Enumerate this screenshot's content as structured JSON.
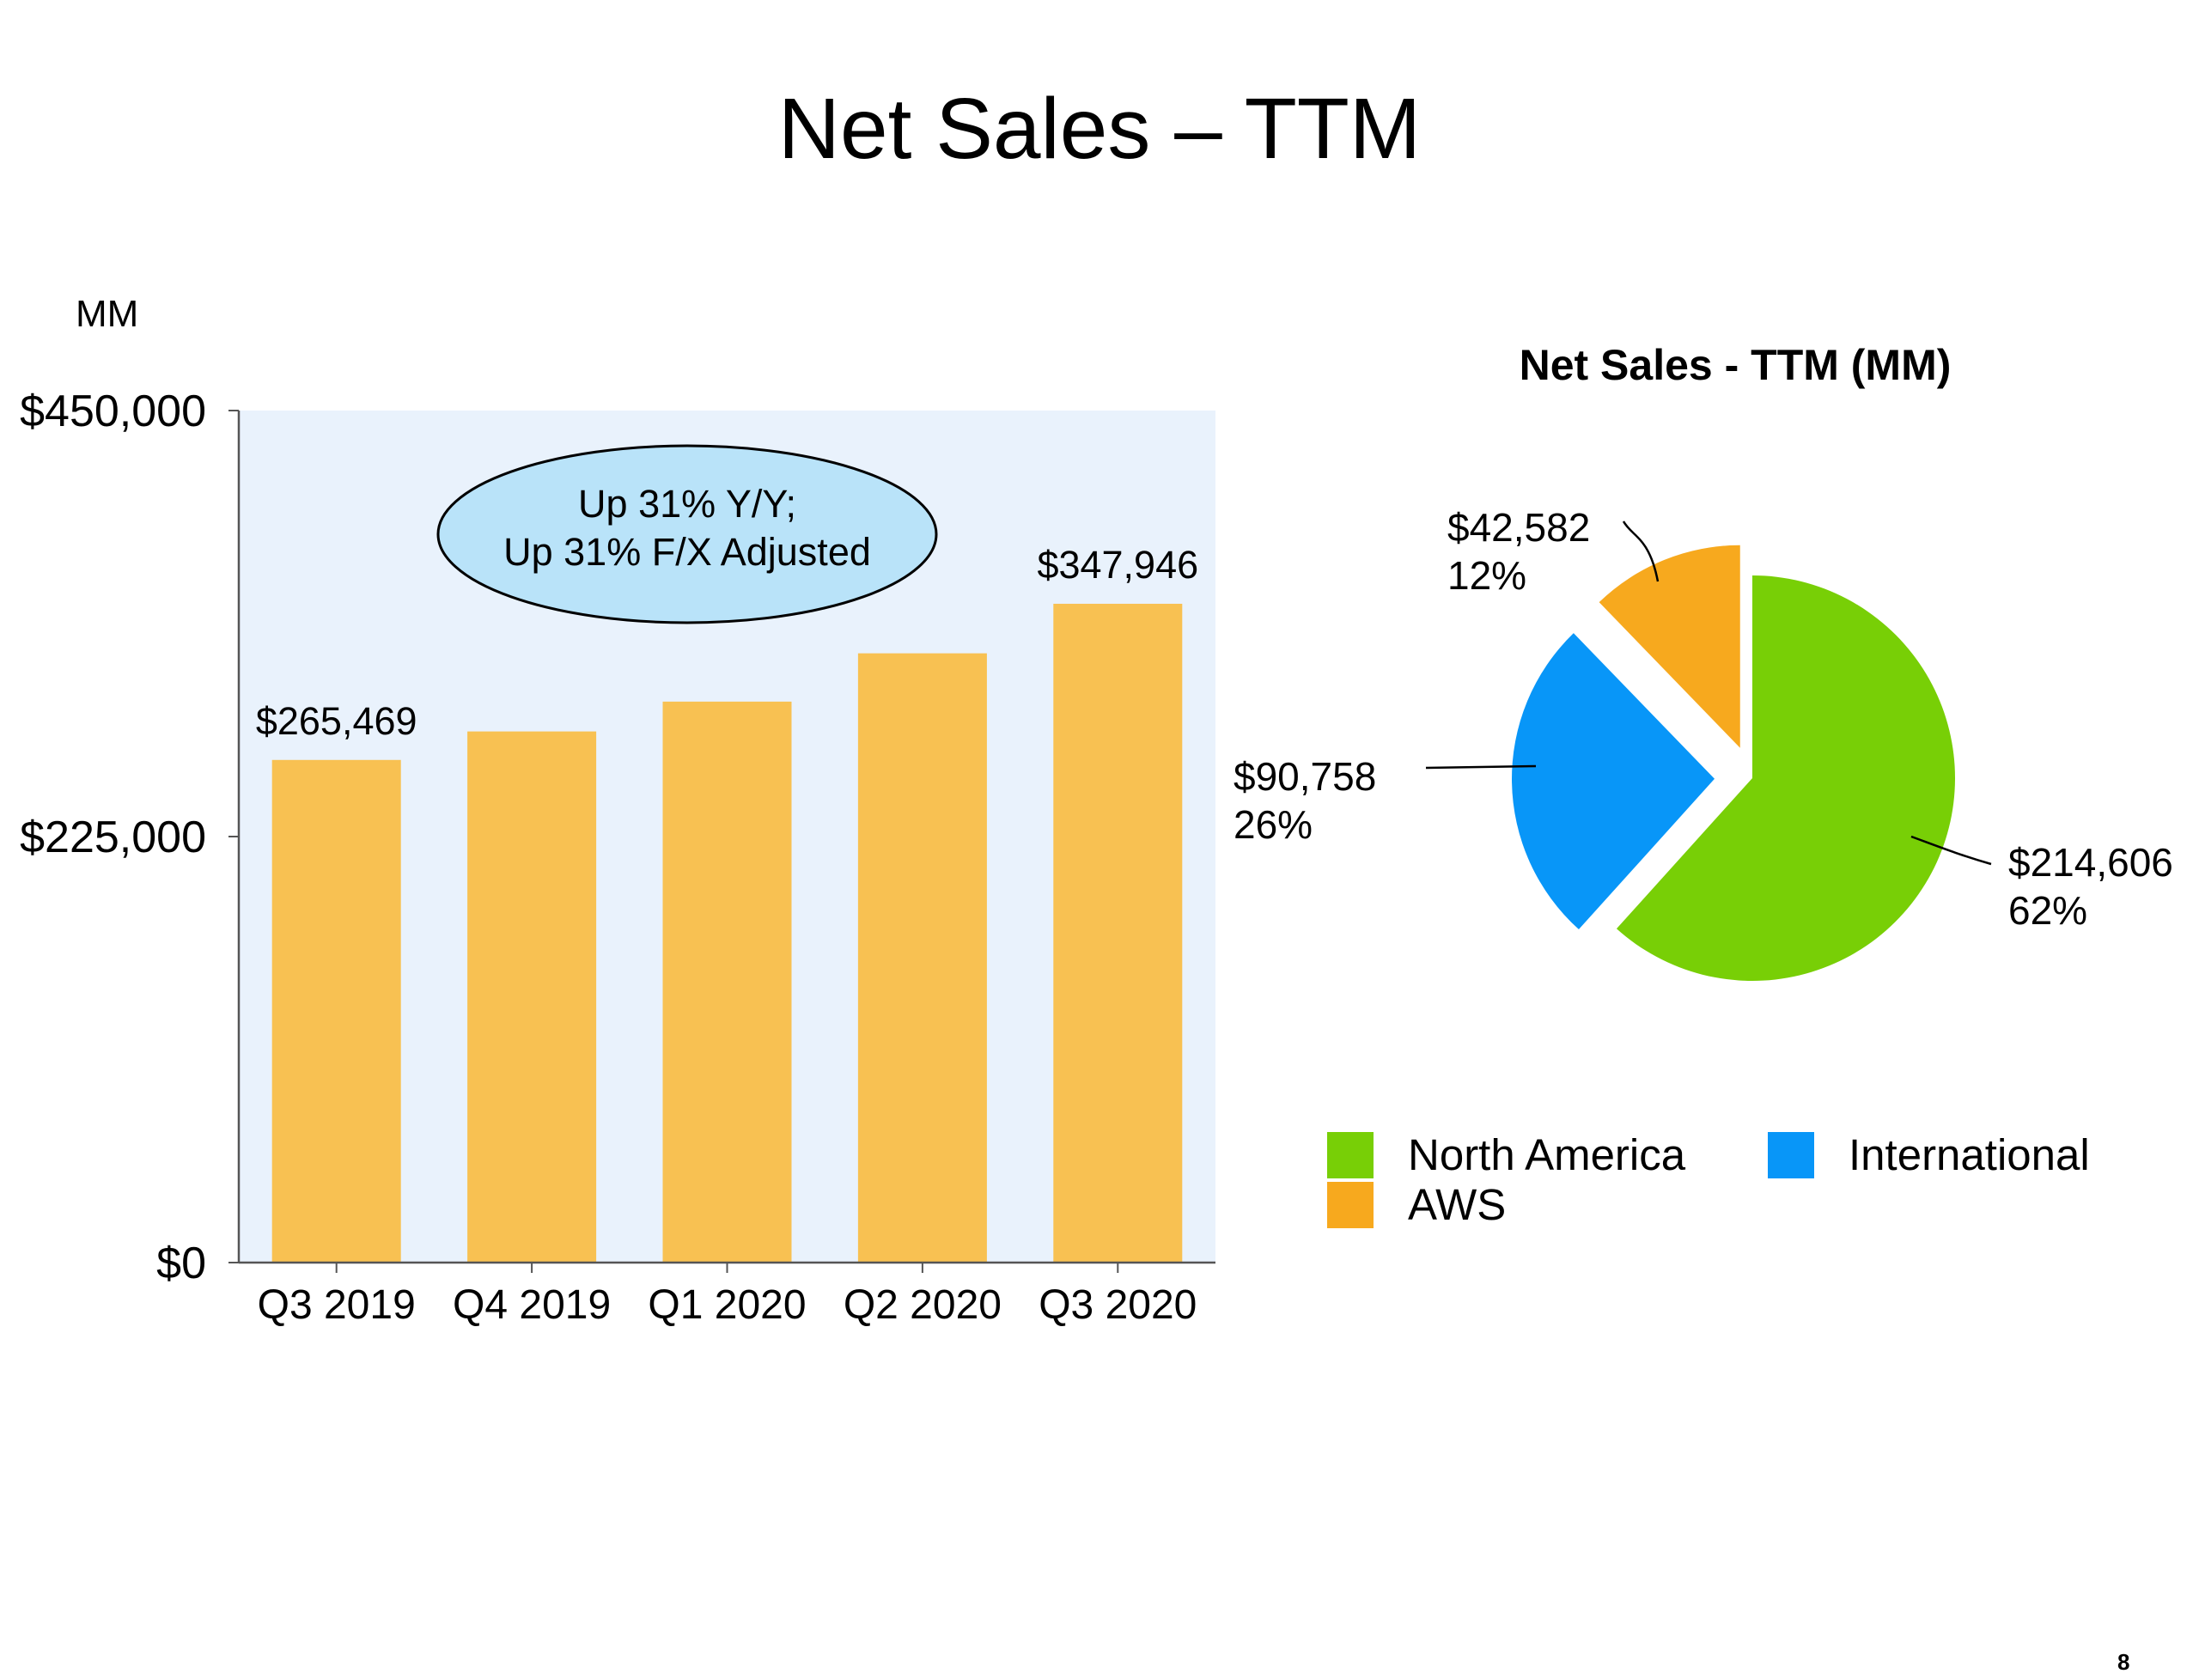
{
  "title": "Net Sales – TTM",
  "page_number": "8",
  "colors": {
    "bar": "#F8C152",
    "plot_bg": "#E9F2FC",
    "callout_fill": "#B9E3F9",
    "north_america": "#78CF06",
    "international": "#0896F8",
    "aws": "#F7A91E"
  },
  "chart_data": [
    {
      "type": "bar",
      "unit_label": "MM",
      "categories": [
        "Q3 2019",
        "Q4 2019",
        "Q1 2020",
        "Q2 2020",
        "Q3 2020"
      ],
      "values": [
        265469,
        280522,
        296274,
        321782,
        347946
      ],
      "data_labels": [
        "$265,469",
        "",
        "",
        "",
        "$347,946"
      ],
      "ylim": [
        0,
        450000
      ],
      "yticks": [
        0,
        225000,
        450000
      ],
      "ytick_labels": [
        "$0",
        "$225,000",
        "$450,000"
      ],
      "callout": [
        "Up 31% Y/Y;",
        "Up 31% F/X Adjusted"
      ]
    },
    {
      "type": "pie",
      "title": "Net Sales - TTM (MM)",
      "slices": [
        {
          "name": "North America",
          "value": 214606,
          "value_label": "$214,606",
          "pct_label": "62%",
          "color": "#78CF06"
        },
        {
          "name": "International",
          "value": 90758,
          "value_label": "$90,758",
          "pct_label": "26%",
          "color": "#0896F8"
        },
        {
          "name": "AWS",
          "value": 42582,
          "value_label": "$42,582",
          "pct_label": "12%",
          "color": "#F7A91E"
        }
      ],
      "legend": [
        "North America",
        "International",
        "AWS"
      ]
    }
  ]
}
